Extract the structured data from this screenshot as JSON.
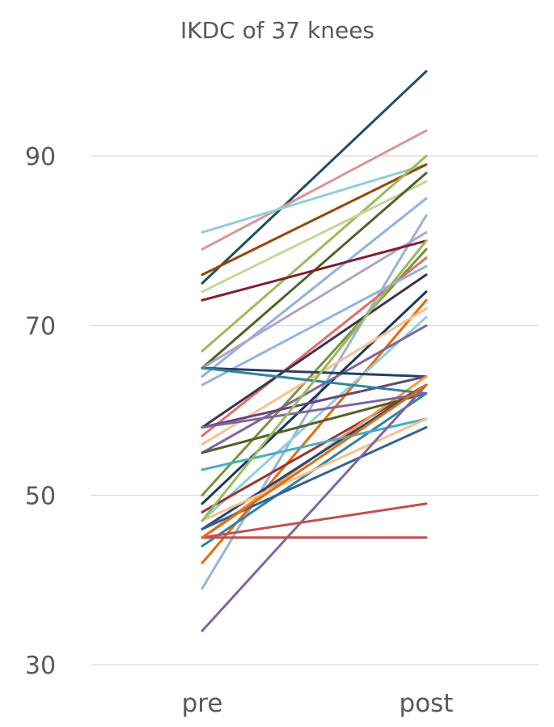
{
  "chart_data": {
    "type": "line",
    "title": "IKDC of 37 knees",
    "categories": [
      "pre",
      "post"
    ],
    "ylim": [
      30,
      100
    ],
    "yticks": [
      30,
      50,
      70,
      90
    ],
    "grid": true,
    "legend": "none",
    "series": [
      {
        "color": "#1f4e5f",
        "values": [
          75,
          100
        ]
      },
      {
        "color": "#d99694",
        "values": [
          79,
          93
        ]
      },
      {
        "color": "#93cddd",
        "values": [
          81,
          89
        ]
      },
      {
        "color": "#9a4600",
        "values": [
          76,
          89
        ]
      },
      {
        "color": "#9bbb59",
        "values": [
          67,
          90
        ]
      },
      {
        "color": "#c3d69b",
        "values": [
          74,
          87
        ]
      },
      {
        "color": "#4f6228",
        "values": [
          65,
          88
        ]
      },
      {
        "color": "#8db3e2",
        "values": [
          64,
          85
        ]
      },
      {
        "color": "#95b3d7",
        "values": [
          39,
          83
        ]
      },
      {
        "color": "#b3a2c7",
        "values": [
          65,
          81
        ]
      },
      {
        "color": "#7f1e2e",
        "values": [
          73,
          80
        ]
      },
      {
        "color": "#77933c",
        "values": [
          50,
          79
        ]
      },
      {
        "color": "#e46c6c",
        "values": [
          57,
          78
        ]
      },
      {
        "color": "#8eb4e3",
        "values": [
          63,
          77
        ]
      },
      {
        "color": "#403151",
        "values": [
          58,
          76
        ]
      },
      {
        "color": "#17375e",
        "values": [
          49,
          74
        ]
      },
      {
        "color": "#e46c0a",
        "values": [
          42,
          73
        ]
      },
      {
        "color": "#fac090",
        "values": [
          56,
          72
        ]
      },
      {
        "color": "#92cddc",
        "values": [
          47,
          71
        ]
      },
      {
        "color": "#8064a2",
        "values": [
          55,
          70
        ]
      },
      {
        "color": "#254061",
        "values": [
          65,
          64
        ]
      },
      {
        "color": "#60497a",
        "values": [
          58,
          64
        ]
      },
      {
        "color": "#953735",
        "values": [
          48,
          63
        ]
      },
      {
        "color": "#f79646",
        "values": [
          45,
          64
        ]
      },
      {
        "color": "#31859c",
        "values": [
          65,
          62
        ]
      },
      {
        "color": "#4f6228",
        "values": [
          55,
          62
        ]
      },
      {
        "color": "#1f497d",
        "values": [
          46,
          63
        ]
      },
      {
        "color": "#31859c",
        "values": [
          44,
          62
        ]
      },
      {
        "color": "#4bacc6",
        "values": [
          53,
          59
        ]
      },
      {
        "color": "#fabf8f",
        "values": [
          47,
          59
        ]
      },
      {
        "color": "#366092",
        "values": [
          46,
          58
        ]
      },
      {
        "color": "#8064a2",
        "values": [
          34,
          63
        ]
      },
      {
        "color": "#c0504d",
        "values": [
          45,
          49
        ]
      },
      {
        "color": "#c0504d",
        "values": [
          45,
          45
        ]
      },
      {
        "color": "#8064a2",
        "values": [
          58,
          62
        ]
      },
      {
        "color": "#9bbb59",
        "values": [
          47,
          80
        ]
      },
      {
        "color": "#e46c0a",
        "values": [
          45,
          63
        ]
      }
    ]
  }
}
